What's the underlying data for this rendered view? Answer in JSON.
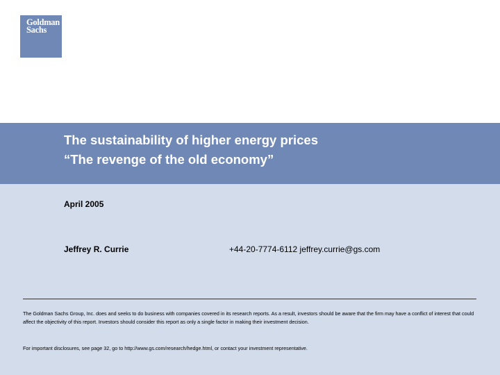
{
  "logo": {
    "line1": "Goldman",
    "line2": "Sachs",
    "bg_color": "#7088b6"
  },
  "title": {
    "line1": "The sustainability of higher energy prices",
    "line2": "“The revenge of the old economy”",
    "band_color": "#7088b6"
  },
  "date": "April 2005",
  "author": {
    "name": "Jeffrey R. Currie",
    "phone_email": "+44-20-7774-6112 jeffrey.currie@gs.com"
  },
  "footer": {
    "disclaimer": "The Goldman Sachs Group, Inc. does and seeks to do business with companies covered in its research reports. As a result, investors should be aware that the firm may have a conflict of interest that could affect the objectivity of this report. Investors should consider this report as only a single factor in making their investment decision.",
    "disclosure": "For important disclosures, see page 32, go to http://www.gs.com/research/hedge.html, or contact your investment representative.",
    "bg_color": "#d3dceb"
  }
}
